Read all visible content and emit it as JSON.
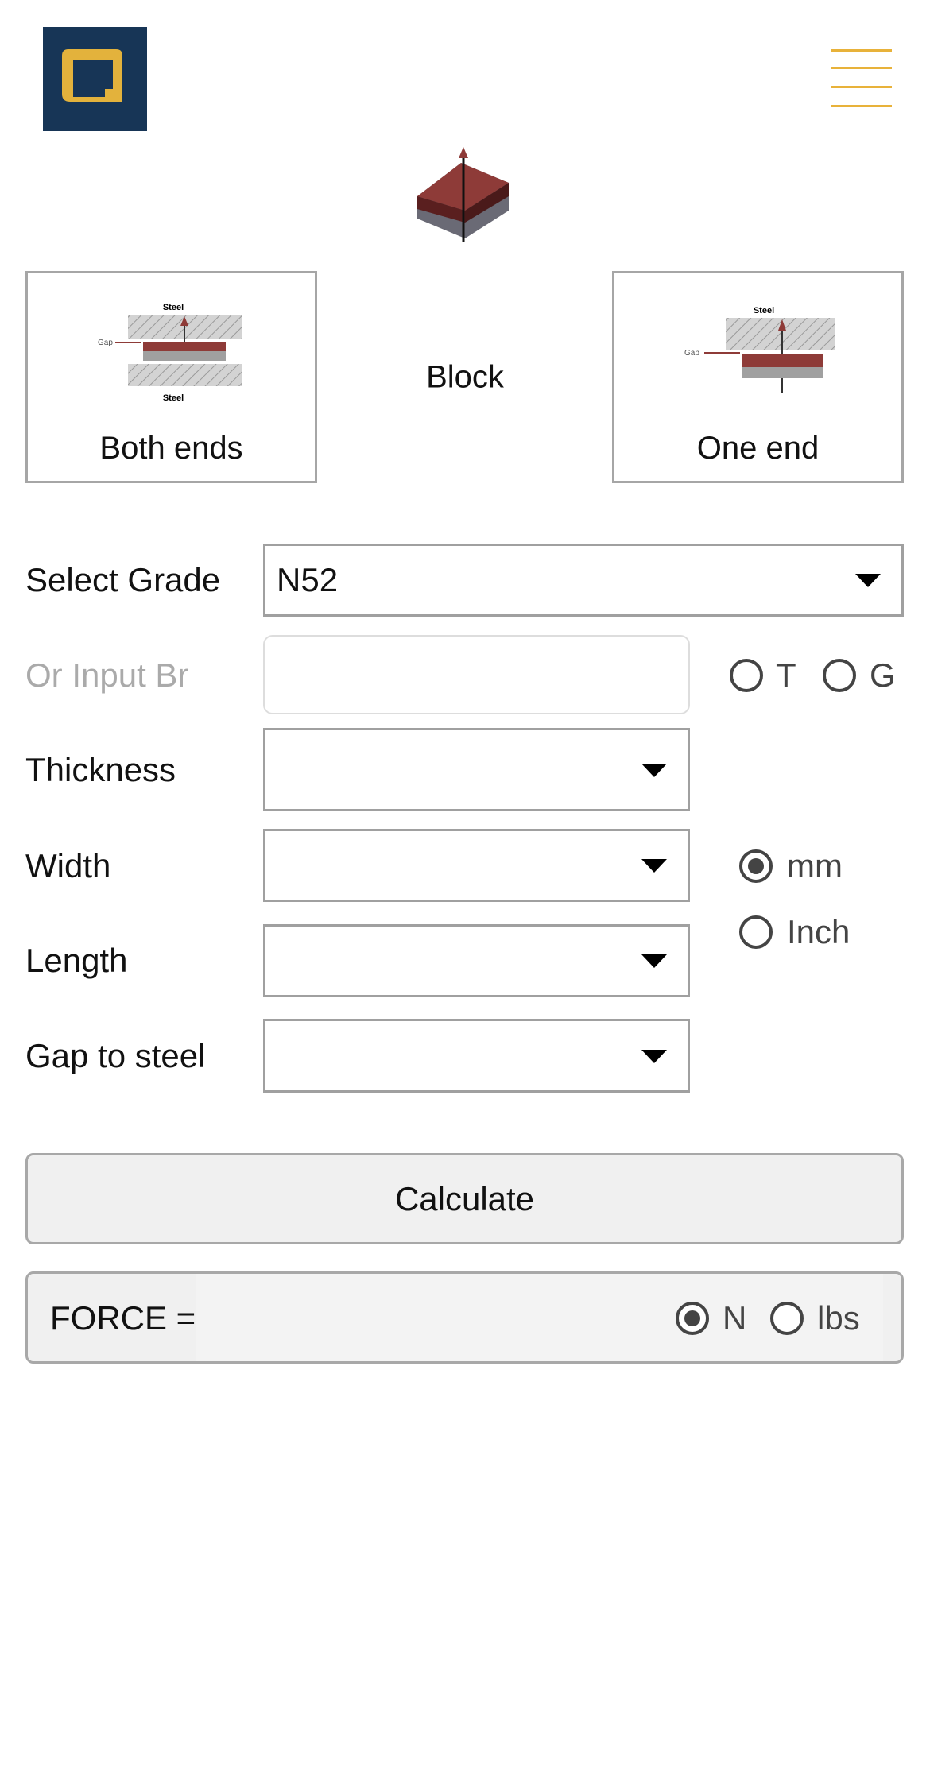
{
  "header": {
    "logo": "logo",
    "menu_icon": "hamburger-menu-icon",
    "brand_colors": {
      "logo_bg": "#173556",
      "logo_fg": "#e3b23c",
      "menu": "#e8b23a"
    }
  },
  "shape": {
    "title": "Block",
    "options": [
      {
        "label": "Both ends",
        "diagram_text": [
          "Steel",
          "Gap",
          "Steel"
        ]
      },
      {
        "label": "One end",
        "diagram_text": [
          "Steel",
          "Gap"
        ]
      }
    ]
  },
  "form": {
    "grade": {
      "label": "Select Grade",
      "value": "N52"
    },
    "br": {
      "label": "Or Input Br",
      "value": "",
      "units": [
        {
          "label": "T",
          "selected": false
        },
        {
          "label": "G",
          "selected": false
        }
      ]
    },
    "thickness": {
      "label": "Thickness",
      "value": ""
    },
    "width": {
      "label": "Width",
      "value": ""
    },
    "length": {
      "label": "Length",
      "value": ""
    },
    "gap": {
      "label": "Gap to steel",
      "value": ""
    },
    "dim_units": [
      {
        "label": "mm",
        "selected": true
      },
      {
        "label": "Inch",
        "selected": false
      }
    ]
  },
  "calculate_label": "Calculate",
  "result": {
    "label": "FORCE =",
    "value": "",
    "units": [
      {
        "label": "N",
        "selected": true
      },
      {
        "label": "lbs",
        "selected": false
      }
    ]
  }
}
